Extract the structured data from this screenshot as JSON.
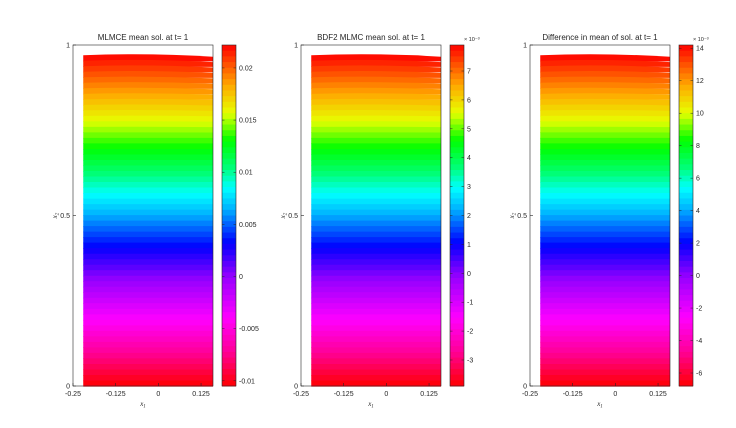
{
  "chart_data": [
    {
      "type": "heatmap",
      "title": "MLMCE mean sol. at t= 1",
      "xlabel": "x1",
      "ylabel": "x2",
      "xlim": [
        -0.25,
        0.16
      ],
      "ylim": [
        0,
        1
      ],
      "x_ticks": [
        "-0.25",
        "-0.125",
        "0",
        "0.125"
      ],
      "x_tick_values": [
        -0.25,
        -0.125,
        0,
        0.125
      ],
      "y_ticks": [
        "0",
        "0.5",
        "1"
      ],
      "y_tick_values": [
        0,
        0.5,
        1
      ],
      "colorbar": {
        "range": [
          -0.0105,
          0.0222
        ],
        "ticks": [
          "-0.01",
          "-0.005",
          "0",
          "0.005",
          "0.01",
          "0.015",
          "0.02"
        ],
        "tick_values": [
          -0.01,
          -0.005,
          0,
          0.005,
          0.01,
          0.015,
          0.02
        ],
        "exponent_label": ""
      }
    },
    {
      "type": "heatmap",
      "title": "BDF2 MLMC mean sol. at t= 1",
      "xlabel": "x1",
      "ylabel": "x2",
      "xlim": [
        -0.25,
        0.16
      ],
      "ylim": [
        0,
        1
      ],
      "x_ticks": [
        "-0.25",
        "-0.125",
        "0",
        "0.125"
      ],
      "x_tick_values": [
        -0.25,
        -0.125,
        0,
        0.125
      ],
      "y_ticks": [
        "0",
        "0.5",
        "1"
      ],
      "y_tick_values": [
        0,
        0.5,
        1
      ],
      "colorbar": {
        "range": [
          -3.9,
          7.9
        ],
        "ticks": [
          "-3",
          "-2",
          "-1",
          "0",
          "1",
          "2",
          "3",
          "4",
          "5",
          "6",
          "7"
        ],
        "tick_values": [
          -3,
          -2,
          -1,
          0,
          1,
          2,
          3,
          4,
          5,
          6,
          7
        ],
        "exponent_label": "× 10⁻³"
      }
    },
    {
      "type": "heatmap",
      "title": "Difference in mean of sol. at t= 1",
      "xlabel": "x1",
      "ylabel": "x2",
      "xlim": [
        -0.25,
        0.16
      ],
      "ylim": [
        0,
        1
      ],
      "x_ticks": [
        "-0.25",
        "-0.125",
        "0",
        "0.125"
      ],
      "x_tick_values": [
        -0.25,
        -0.125,
        0,
        0.125
      ],
      "y_ticks": [
        "0",
        "0.5",
        "1"
      ],
      "y_tick_values": [
        0,
        0.5,
        1
      ],
      "colorbar": {
        "range": [
          -6.8,
          14.2
        ],
        "ticks": [
          "-6",
          "-4",
          "-2",
          "0",
          "2",
          "4",
          "6",
          "8",
          "10",
          "12",
          "14"
        ],
        "tick_values": [
          -6,
          -4,
          -2,
          0,
          2,
          4,
          6,
          8,
          10,
          12,
          14
        ],
        "exponent_label": "× 10⁻³"
      }
    }
  ]
}
